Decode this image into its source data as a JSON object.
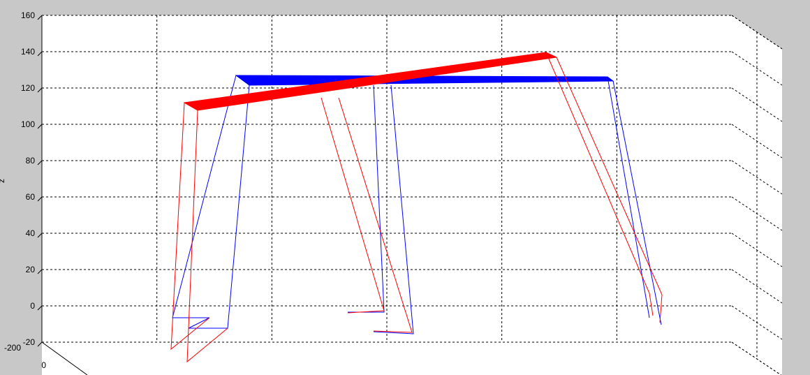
{
  "chart_data": {
    "type": "line",
    "view": "3d",
    "zlabel": "z",
    "z_ticks": [
      "160",
      "140",
      "120",
      "100",
      "80",
      "60",
      "40",
      "20",
      "0",
      "-20"
    ],
    "zlim": [
      -20,
      160
    ],
    "y_ticks": [
      "-200",
      "0"
    ],
    "grid": true,
    "legend": "none",
    "colors": {
      "red_series": "#ff0000",
      "blue_series": "#0000ff",
      "pane": "#ffffff",
      "background": "#c8c8c8"
    },
    "series": [
      {
        "color": "red",
        "beam_z": [
          110,
          112,
          138,
          140
        ],
        "legs": [
          {
            "top_z": 110,
            "bottom_z": -27
          },
          {
            "top_z": 125,
            "bottom_z": -15
          },
          {
            "top_z": 140,
            "bottom_z": -5
          }
        ]
      },
      {
        "color": "blue",
        "beam_z": [
          125,
          120,
          122,
          125
        ],
        "legs": [
          {
            "top_z": 125,
            "bottom_z": -12
          },
          {
            "top_z": 122,
            "bottom_z": -20
          },
          {
            "top_z": 120,
            "bottom_z": -15
          }
        ]
      }
    ]
  }
}
